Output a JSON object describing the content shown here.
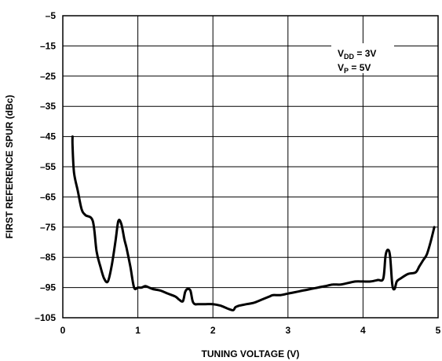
{
  "chart_data": {
    "type": "line",
    "xlabel": "TUNING VOLTAGE (V)",
    "ylabel": "FIRST REFERENCE SPUR (dBc)",
    "xlim": [
      0,
      5
    ],
    "ylim": [
      -105,
      -5
    ],
    "x_ticks": [
      "0",
      "1",
      "2",
      "3",
      "4",
      "5"
    ],
    "y_ticks": [
      "–5",
      "–15",
      "–25",
      "–35",
      "–45",
      "–55",
      "–65",
      "–75",
      "–85",
      "–95",
      "–105"
    ],
    "grid": true,
    "annotations": [
      {
        "text": "V",
        "sub": "DD",
        "suffix": " = 3V"
      },
      {
        "text": "V",
        "sub": "P",
        "suffix": " = 5V"
      }
    ],
    "series": [
      {
        "x": [
          0.13,
          0.13,
          0.15,
          0.2,
          0.25,
          0.3,
          0.4,
          0.45,
          0.5,
          0.55,
          0.6,
          0.65,
          0.7,
          0.74,
          0.78,
          0.82,
          0.85,
          0.9,
          0.95,
          1.0,
          1.05,
          1.1,
          1.15,
          1.2,
          1.3,
          1.4,
          1.5,
          1.55,
          1.6,
          1.63,
          1.66,
          1.7,
          1.73,
          1.76,
          1.8,
          1.9,
          2.0,
          2.1,
          2.2,
          2.27,
          2.3,
          2.35,
          2.45,
          2.55,
          2.65,
          2.75,
          2.8,
          2.9,
          3.0,
          3.1,
          3.2,
          3.3,
          3.4,
          3.5,
          3.6,
          3.7,
          3.8,
          3.9,
          4.0,
          4.1,
          4.2,
          4.27,
          4.3,
          4.33,
          4.36,
          4.39,
          4.42,
          4.45,
          4.5,
          4.6,
          4.7,
          4.75,
          4.8,
          4.85,
          4.9,
          4.95
        ],
        "values": [
          -45,
          -48,
          -57,
          -63,
          -69,
          -71,
          -73,
          -83,
          -88,
          -92,
          -93,
          -88,
          -80,
          -73,
          -74,
          -79,
          -82,
          -88,
          -95,
          -95,
          -95,
          -94.5,
          -95,
          -95.5,
          -96,
          -97,
          -98,
          -99,
          -99.5,
          -96.5,
          -95.5,
          -96,
          -99.5,
          -100.5,
          -100.5,
          -100.5,
          -100.5,
          -101,
          -102,
          -102.5,
          -101.5,
          -101,
          -100.5,
          -100,
          -99,
          -98,
          -97.5,
          -97.5,
          -97,
          -96.5,
          -96,
          -95.5,
          -95,
          -94.5,
          -94,
          -94,
          -93.5,
          -93,
          -93,
          -93,
          -92.5,
          -92,
          -84.5,
          -82.5,
          -84.5,
          -94,
          -95.5,
          -93,
          -92,
          -90.5,
          -90,
          -88,
          -86,
          -84,
          -80,
          -75
        ]
      }
    ]
  }
}
